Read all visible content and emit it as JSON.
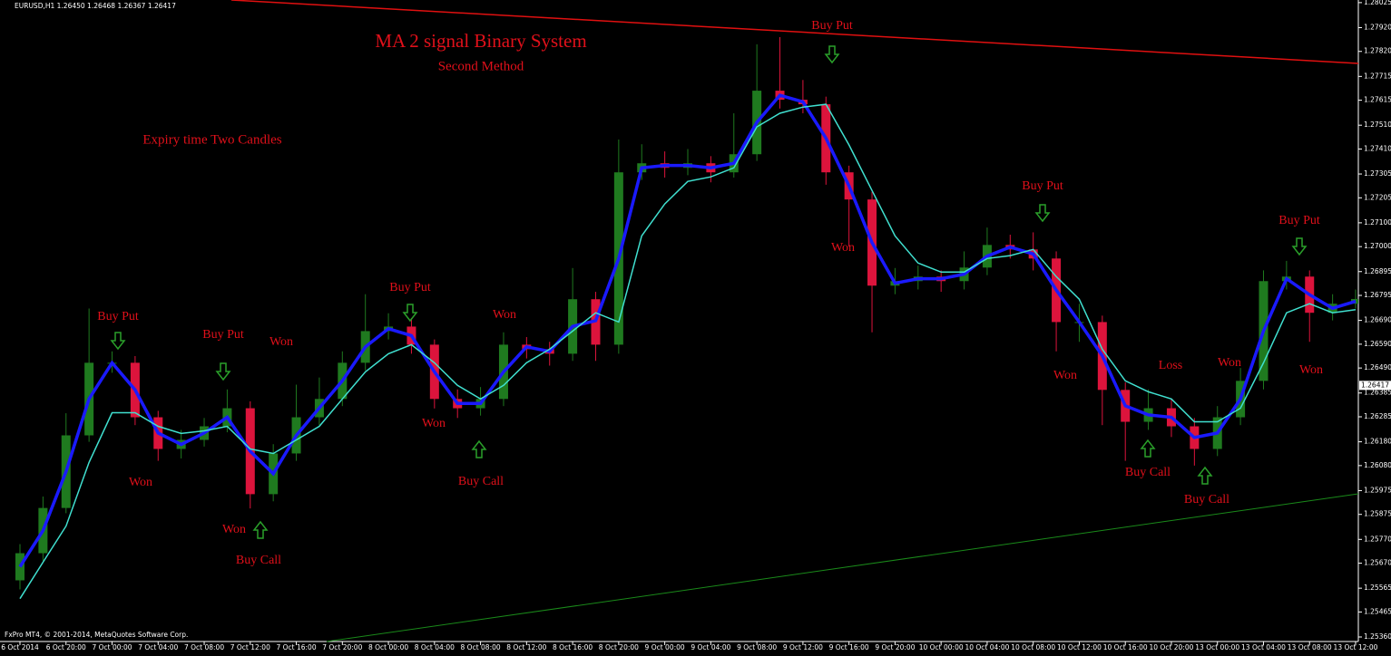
{
  "header": "EURUSD,H1  1.26450 1.26468 1.26367 1.26417",
  "footer": "FxPro MT4, © 2001-2014, MetaQuotes Software Corp.",
  "chart_data": {
    "type": "candlestick",
    "title": "MA 2 signal Binary System",
    "subtitle": "Second Method",
    "note": "Expiry time Two Candles",
    "annotations": [
      "Buy Put",
      "Buy Put",
      "Won",
      "Won",
      "Won",
      "Buy Call",
      "Buy Put",
      "Won",
      "Won",
      "Buy Call",
      "Buy Put",
      "Won",
      "Buy Put",
      "Won",
      "Loss",
      "Won",
      "Buy Call",
      "Buy Call",
      "Buy Put",
      "Won"
    ],
    "categories": [
      "6 Oct 2014",
      null,
      "6 Oct 20:00",
      null,
      "7 Oct 00:00",
      null,
      "7 Oct 04:00",
      null,
      "7 Oct 08:00",
      null,
      "7 Oct 12:00",
      null,
      "7 Oct 16:00",
      null,
      "7 Oct 20:00",
      null,
      "8 Oct 00:00",
      null,
      "8 Oct 04:00",
      null,
      "8 Oct 08:00",
      null,
      "8 Oct 12:00",
      null,
      "8 Oct 16:00",
      null,
      "8 Oct 20:00",
      null,
      "9 Oct 00:00",
      null,
      "9 Oct 04:00",
      null,
      "9 Oct 08:00",
      null,
      "9 Oct 12:00",
      null,
      "9 Oct 16:00",
      null,
      "9 Oct 20:00",
      null,
      "10 Oct 00:00",
      null,
      "10 Oct 04:00",
      null,
      "10 Oct 08:00",
      null,
      "10 Oct 12:00",
      null,
      "10 Oct 16:00",
      null,
      "10 Oct 20:00",
      null,
      "13 Oct 00:00",
      null,
      "13 Oct 04:00",
      null,
      "13 Oct 08:00",
      null,
      "13 Oct 12:00"
    ],
    "open": [
      1.25598,
      1.25712,
      1.25902,
      1.26207,
      1.26512,
      1.26512,
      1.26283,
      1.2615,
      1.26188,
      1.26245,
      1.26321,
      1.2596,
      1.26131,
      1.26283,
      1.2636,
      1.26512,
      1.26645,
      1.26664,
      1.26588,
      1.2636,
      1.26321,
      1.2636,
      1.26588,
      1.26569,
      1.2655,
      1.26779,
      1.26588,
      1.27312,
      1.2735,
      1.27331,
      1.2735,
      1.27312,
      1.27388,
      1.27655,
      1.27617,
      1.27598,
      1.27312,
      1.27198,
      1.26836,
      1.26855,
      1.26874,
      1.26855,
      1.26912,
      1.27007,
      1.26988,
      1.2695,
      1.26683,
      1.26683,
      1.26398,
      1.26264,
      1.26321,
      1.26245,
      1.2615,
      1.26283,
      1.26436,
      1.26855,
      1.26874,
      1.26722,
      1.2676
    ],
    "high": [
      1.2575,
      1.2595,
      1.263,
      1.2674,
      1.2656,
      1.2654,
      1.2631,
      1.2623,
      1.2628,
      1.264,
      1.2635,
      1.2617,
      1.2642,
      1.2645,
      1.2656,
      1.268,
      1.2672,
      1.267,
      1.2661,
      1.264,
      1.2641,
      1.2664,
      1.2662,
      1.266,
      1.2691,
      1.2681,
      1.2745,
      1.2743,
      1.274,
      1.2741,
      1.2738,
      1.2756,
      1.2785,
      1.2788,
      1.277,
      1.2763,
      1.2734,
      1.2723,
      1.2691,
      1.2692,
      1.269,
      1.2698,
      1.2708,
      1.2705,
      1.2706,
      1.2698,
      1.2676,
      1.2671,
      1.2643,
      1.264,
      1.2636,
      1.2628,
      1.2633,
      1.2649,
      1.269,
      1.2694,
      1.269,
      1.268,
      1.2682
    ],
    "low": [
      1.2556,
      1.2568,
      1.2588,
      1.2618,
      1.2647,
      1.2625,
      1.261,
      1.2611,
      1.2616,
      1.2622,
      1.259,
      1.2593,
      1.261,
      1.2625,
      1.2633,
      1.2648,
      1.2661,
      1.2655,
      1.2632,
      1.2628,
      1.2629,
      1.2633,
      1.2653,
      1.265,
      1.2652,
      1.2652,
      1.2655,
      1.2728,
      1.2729,
      1.273,
      1.2727,
      1.2729,
      1.2736,
      1.2758,
      1.2756,
      1.2726,
      1.27,
      1.2664,
      1.268,
      1.2682,
      1.2681,
      1.2682,
      1.2688,
      1.2695,
      1.269,
      1.2656,
      1.266,
      1.2625,
      1.261,
      1.2623,
      1.262,
      1.2608,
      1.2612,
      1.2625,
      1.264,
      1.2682,
      1.266,
      1.2669,
      1.2674
    ],
    "close": [
      1.25712,
      1.25902,
      1.26207,
      1.26512,
      1.26512,
      1.26283,
      1.2615,
      1.26188,
      1.26245,
      1.26321,
      1.2596,
      1.26131,
      1.26283,
      1.2636,
      1.26512,
      1.26645,
      1.26664,
      1.26588,
      1.2636,
      1.26321,
      1.2636,
      1.26588,
      1.26569,
      1.2655,
      1.26779,
      1.26588,
      1.27312,
      1.2735,
      1.27331,
      1.2735,
      1.27312,
      1.27388,
      1.27655,
      1.27617,
      1.27598,
      1.27312,
      1.27198,
      1.26836,
      1.26855,
      1.26874,
      1.26855,
      1.26912,
      1.27007,
      1.26988,
      1.2695,
      1.26683,
      1.26683,
      1.26398,
      1.26264,
      1.26321,
      1.26245,
      1.2615,
      1.26283,
      1.26436,
      1.26855,
      1.26874,
      1.26722,
      1.2676,
      1.2678
    ],
    "up_color": "#1f7a1f",
    "down_color": "#dc143c",
    "series": [
      {
        "color": "#1a1aff",
        "values": [
          1.25655,
          1.25807,
          1.26055,
          1.2636,
          1.26512,
          1.26398,
          1.26217,
          1.26169,
          1.26217,
          1.26283,
          1.2614,
          1.26046,
          1.26207,
          1.26322,
          1.26436,
          1.26579,
          1.26655,
          1.26626,
          1.26474,
          1.26341,
          1.26341,
          1.26474,
          1.26579,
          1.2656,
          1.26665,
          1.26689,
          1.2695,
          1.27331,
          1.27341,
          1.27341,
          1.27331,
          1.2735,
          1.27522,
          1.27636,
          1.27608,
          1.27455,
          1.27255,
          1.27017,
          1.26846,
          1.26865,
          1.26865,
          1.26884,
          1.2696,
          1.26998,
          1.26969,
          1.26817,
          1.26683,
          1.26541,
          1.26331,
          1.26293,
          1.26283,
          1.26198,
          1.26217,
          1.2636,
          1.26646,
          1.26865,
          1.26798,
          1.26741,
          1.2677
        ]
      },
      {
        "color": "#40e0d0",
        "values": [
          1.25521,
          1.25674,
          1.25826,
          1.26093,
          1.26302,
          1.26302,
          1.26245,
          1.26215,
          1.26226,
          1.26245,
          1.2615,
          1.26131,
          1.26188,
          1.26245,
          1.2636,
          1.26474,
          1.2655,
          1.26588,
          1.26512,
          1.26417,
          1.2636,
          1.26417,
          1.26512,
          1.26569,
          1.26645,
          1.26722,
          1.26683,
          1.27045,
          1.27179,
          1.27274,
          1.27293,
          1.27331,
          1.27503,
          1.2756,
          1.27586,
          1.27598,
          1.27427,
          1.27236,
          1.27045,
          1.26931,
          1.26893,
          1.26893,
          1.2695,
          1.26962,
          1.26988,
          1.26874,
          1.26779,
          1.26569,
          1.26436,
          1.2639,
          1.2636,
          1.26264,
          1.26264,
          1.26321,
          1.26512,
          1.26722,
          1.2676,
          1.26722,
          1.26735
        ]
      }
    ],
    "current_price": 1.26417,
    "ylim": [
      1.25341,
      1.28036
    ],
    "yticks": [
      1.28025,
      {
        "value": 1.2792,
        "label": "1.27920"
      },
      {
        "value": 1.2782,
        "label": "1.27820"
      },
      1.27715,
      1.27615,
      {
        "value": 1.2751,
        "label": "1.27510"
      },
      {
        "value": 1.2741,
        "label": "1.27410"
      },
      1.27305,
      1.27205,
      {
        "value": 1.271,
        "label": "1.27100"
      },
      {
        "value": 1.27,
        "label": "1.27000"
      },
      1.26895,
      1.26795,
      {
        "value": 1.2669,
        "label": "1.26690"
      },
      {
        "value": 1.2659,
        "label": "1.26590"
      },
      {
        "value": 1.2649,
        "label": "1.26490"
      },
      1.26385,
      1.26285,
      {
        "value": 1.2618,
        "label": "1.26180"
      },
      {
        "value": 1.2608,
        "label": "1.26080"
      },
      1.25975,
      1.25875,
      {
        "value": 1.2577,
        "label": "1.25770"
      },
      {
        "value": 1.2567,
        "label": "1.25670"
      },
      1.25565,
      1.25465,
      {
        "value": 1.2536,
        "label": "1.25360"
      }
    ]
  }
}
